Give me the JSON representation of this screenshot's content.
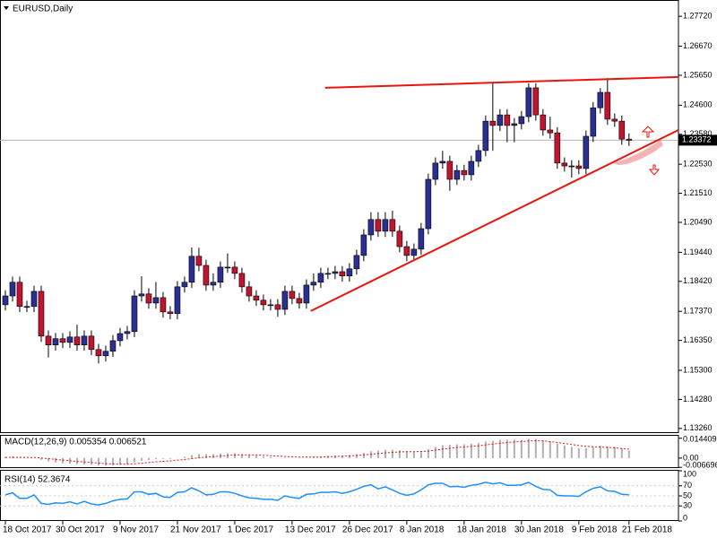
{
  "chart_data": [
    {
      "type": "candlestick",
      "title": "EURUSD,Daily",
      "categories": [
        "18 Oct 2017",
        null,
        null,
        null,
        null,
        null,
        null,
        null,
        "30 Oct 2017",
        null,
        null,
        null,
        null,
        null,
        null,
        null,
        "9 Nov 2017",
        null,
        null,
        null,
        null,
        null,
        null,
        null,
        "21 Nov 2017",
        null,
        null,
        null,
        null,
        null,
        null,
        null,
        "1 Dec 2017",
        null,
        null,
        null,
        null,
        null,
        null,
        null,
        "13 Dec 2017",
        null,
        null,
        null,
        null,
        null,
        null,
        null,
        "26 Dec 2017",
        null,
        null,
        null,
        null,
        null,
        null,
        null,
        "8 Jan 2018",
        null,
        null,
        null,
        null,
        null,
        null,
        null,
        "18 Jan 2018",
        null,
        null,
        null,
        null,
        null,
        null,
        null,
        "30 Jan 2018",
        null,
        null,
        null,
        null,
        null,
        null,
        null,
        "9 Feb 2018",
        null,
        null,
        null,
        null,
        null,
        null,
        "21 Feb 2018"
      ],
      "open": [
        1.176,
        1.1791,
        1.1839,
        1.1754,
        1.1754,
        1.1807,
        1.165,
        1.1619,
        1.1641,
        1.1628,
        1.1647,
        1.1619,
        1.165,
        1.1603,
        1.1581,
        1.1597,
        1.1634,
        1.1659,
        1.1666,
        1.1791,
        1.1798,
        1.1766,
        1.1785,
        1.1735,
        1.1729,
        1.1823,
        1.1839,
        1.193,
        1.1898,
        1.1829,
        1.1839,
        1.1892,
        1.1892,
        1.187,
        1.1823,
        1.1791,
        1.1776,
        1.176,
        1.176,
        1.1744,
        1.1807,
        1.1782,
        1.1766,
        1.1829,
        1.1839,
        1.187,
        1.187,
        1.1876,
        1.1861,
        1.1886,
        1.1933,
        1.2005,
        1.2059,
        1.2018,
        1.2059,
        1.2018,
        1.1964,
        1.1933,
        1.1955,
        1.2027,
        1.22,
        1.2257,
        1.2263,
        1.22,
        1.2231,
        1.2216,
        1.2263,
        1.2301,
        1.2404,
        1.2389,
        1.2426,
        1.2389,
        1.2395,
        1.242,
        1.2521,
        1.2426,
        1.2373,
        1.2363,
        1.2257,
        1.2247,
        1.2247,
        1.2238,
        1.2351,
        1.2451,
        1.2505,
        1.2411,
        1.2404,
        1.2341
      ],
      "high": [
        1.1811,
        1.1859,
        1.1859,
        1.1774,
        1.1827,
        1.1827,
        1.167,
        1.1661,
        1.1661,
        1.1667,
        1.169,
        1.167,
        1.167,
        1.1623,
        1.1617,
        1.1654,
        1.1679,
        1.1686,
        1.1811,
        1.186,
        1.1818,
        1.184,
        1.1805,
        1.1755,
        1.1843,
        1.1859,
        1.1961,
        1.196,
        1.1918,
        1.187,
        1.1912,
        1.194,
        1.1912,
        1.189,
        1.1843,
        1.1811,
        1.1796,
        1.178,
        1.178,
        1.1827,
        1.1827,
        1.1802,
        1.1849,
        1.187,
        1.189,
        1.189,
        1.1896,
        1.1896,
        1.1906,
        1.1953,
        1.2025,
        1.2085,
        1.2085,
        1.2085,
        1.209,
        1.2038,
        1.1984,
        1.1975,
        1.2047,
        1.222,
        1.2277,
        1.23,
        1.2283,
        1.2251,
        1.2251,
        1.2283,
        1.2321,
        1.2424,
        1.2537,
        1.2446,
        1.2446,
        1.2415,
        1.244,
        1.2537,
        1.2537,
        1.2446,
        1.242,
        1.2383,
        1.2277,
        1.2267,
        1.2267,
        1.2371,
        1.2471,
        1.252,
        1.2555,
        1.2431,
        1.2424,
        1.2361
      ],
      "low": [
        1.174,
        1.1771,
        1.1734,
        1.1734,
        1.1734,
        1.163,
        1.1575,
        1.1599,
        1.1608,
        1.1608,
        1.1599,
        1.1599,
        1.1583,
        1.1554,
        1.1561,
        1.1577,
        1.1614,
        1.1639,
        1.1646,
        1.1771,
        1.1746,
        1.1746,
        1.1715,
        1.1709,
        1.1709,
        1.1803,
        1.1819,
        1.1878,
        1.1809,
        1.1809,
        1.1819,
        1.1872,
        1.185,
        1.1803,
        1.1771,
        1.1756,
        1.174,
        1.174,
        1.1718,
        1.1724,
        1.1762,
        1.1746,
        1.1746,
        1.1809,
        1.1819,
        1.185,
        1.185,
        1.1841,
        1.1841,
        1.1866,
        1.1913,
        1.1985,
        1.1998,
        1.1998,
        1.1998,
        1.1944,
        1.1913,
        1.1913,
        1.1935,
        1.2007,
        1.218,
        1.2237,
        1.216,
        1.218,
        1.2196,
        1.2196,
        1.2243,
        1.2281,
        1.23,
        1.2369,
        1.233,
        1.233,
        1.2375,
        1.24,
        1.2406,
        1.2353,
        1.2343,
        1.2237,
        1.2227,
        1.2206,
        1.2218,
        1.2218,
        1.2331,
        1.2431,
        1.2391,
        1.2384,
        1.2321,
        1.2317
      ],
      "close": [
        1.1791,
        1.1839,
        1.1754,
        1.1754,
        1.1807,
        1.165,
        1.1619,
        1.1641,
        1.1628,
        1.1647,
        1.1619,
        1.165,
        1.1603,
        1.1581,
        1.1597,
        1.1634,
        1.1659,
        1.1666,
        1.1791,
        1.1798,
        1.1766,
        1.1785,
        1.1735,
        1.1729,
        1.1823,
        1.1839,
        1.193,
        1.1898,
        1.1829,
        1.1839,
        1.1892,
        1.1892,
        1.187,
        1.1823,
        1.1791,
        1.1776,
        1.176,
        1.176,
        1.1744,
        1.1807,
        1.1782,
        1.1766,
        1.1829,
        1.1839,
        1.187,
        1.187,
        1.1876,
        1.1861,
        1.1886,
        1.1933,
        1.2005,
        1.2059,
        1.2018,
        1.2059,
        1.2018,
        1.1964,
        1.1933,
        1.1955,
        1.2027,
        1.22,
        1.2257,
        1.2263,
        1.22,
        1.2231,
        1.2216,
        1.2263,
        1.2301,
        1.2404,
        1.2389,
        1.2426,
        1.2389,
        1.2395,
        1.242,
        1.2521,
        1.2426,
        1.2373,
        1.2363,
        1.2257,
        1.2247,
        1.2247,
        1.2238,
        1.2351,
        1.2451,
        1.2505,
        1.2411,
        1.2404,
        1.2341,
        1.2337
      ],
      "up_color": "#2b2f8f",
      "down_color": "#c0142f",
      "xlim": [
        -0.75,
        93.9
      ],
      "ylim": [
        1.1313,
        1.2829
      ],
      "yticks": [
        {
          "value": 1.2772,
          "label": "1.27720"
        },
        {
          "value": 1.2667,
          "label": "1.26670"
        },
        {
          "value": 1.2565,
          "label": "1.25650"
        },
        {
          "value": 1.246,
          "label": "1.24600"
        },
        {
          "value": 1.2358,
          "label": "1.23580"
        },
        {
          "value": 1.2253,
          "label": "1.22530"
        },
        {
          "value": 1.2151,
          "label": "1.21510"
        },
        {
          "value": 1.2049,
          "label": "1.20490"
        },
        {
          "value": 1.1944,
          "label": "1.19440"
        },
        {
          "value": 1.1842,
          "label": "1.18420"
        },
        {
          "value": 1.1737,
          "label": "1.17370"
        },
        {
          "value": 1.1635,
          "label": "1.16350"
        },
        {
          "value": 1.153,
          "label": "1.15300"
        },
        {
          "value": 1.1428,
          "label": "1.14280"
        },
        {
          "value": 1.1326,
          "label": "1.13260"
        }
      ],
      "last_price": {
        "value": 1.23372,
        "label": "1.23372"
      },
      "trendlines": [
        {
          "color": "#e8150f",
          "x": [
            44.6,
            93.9
          ],
          "y": [
            1.2521,
            1.2559
          ]
        },
        {
          "color": "#e8150f",
          "x": [
            42.6,
            93.9
          ],
          "y": [
            1.1738,
            1.2373
          ]
        }
      ]
    },
    {
      "type": "macd",
      "label": "MACD(12,26,9) 0.005354 0.006521",
      "histogram": [
        0.001,
        0.0012,
        0.0005,
        0.0,
        0.0,
        -0.0012,
        -0.0024,
        -0.0031,
        -0.0037,
        -0.004,
        -0.0044,
        -0.0045,
        -0.0049,
        -0.0053,
        -0.0054,
        -0.0052,
        -0.0048,
        -0.0044,
        -0.003,
        -0.0019,
        -0.0013,
        -0.0007,
        -0.0006,
        -0.0006,
        0.0002,
        0.0009,
        0.0022,
        0.0029,
        0.0028,
        0.0029,
        0.0033,
        0.0035,
        0.0035,
        0.003,
        0.0024,
        0.0018,
        0.0011,
        0.0006,
        0.0001,
        0.0002,
        0.0001,
        -0.0001,
        0.0003,
        0.0007,
        0.0012,
        0.0016,
        0.0019,
        0.002,
        0.0023,
        0.0029,
        0.0039,
        0.005,
        0.0055,
        0.0061,
        0.0061,
        0.0057,
        0.0051,
        0.0048,
        0.005,
        0.0066,
        0.0082,
        0.0094,
        0.0097,
        0.01,
        0.01,
        0.0104,
        0.0109,
        0.012,
        0.0126,
        0.0132,
        0.0133,
        0.0133,
        0.0133,
        0.014,
        0.0138,
        0.013,
        0.0122,
        0.0106,
        0.0093,
        0.0082,
        0.0072,
        0.0073,
        0.0081,
        0.009,
        0.0087,
        0.0082,
        0.0071,
        0.0054
      ],
      "signal": [
        0.0005,
        0.0006,
        0.0006,
        0.0005,
        0.0004,
        0.0001,
        -0.0004,
        -0.0009,
        -0.0014,
        -0.0019,
        -0.0024,
        -0.0028,
        -0.0032,
        -0.0036,
        -0.004,
        -0.0042,
        -0.0043,
        -0.0044,
        -0.0041,
        -0.0037,
        -0.0032,
        -0.0027,
        -0.0023,
        -0.002,
        -0.0015,
        -0.001,
        -0.0004,
        0.0002,
        0.0007,
        0.0011,
        0.0015,
        0.0019,
        0.0022,
        0.0024,
        0.0024,
        0.0023,
        0.0021,
        0.0018,
        0.0015,
        0.0012,
        0.001,
        0.0008,
        0.0007,
        0.0007,
        0.0008,
        0.001,
        0.0012,
        0.0014,
        0.0016,
        0.0019,
        0.0023,
        0.0028,
        0.0033,
        0.0038,
        0.0042,
        0.0045,
        0.0046,
        0.0047,
        0.0048,
        0.0051,
        0.0058,
        0.0065,
        0.0071,
        0.0077,
        0.0081,
        0.0086,
        0.009,
        0.0096,
        0.0102,
        0.0108,
        0.0113,
        0.0117,
        0.012,
        0.0124,
        0.0127,
        0.0125,
        0.012,
        0.0113,
        0.0106,
        0.0099,
        0.0091,
        0.0085,
        0.0082,
        0.008,
        0.0078,
        0.0075,
        0.007,
        0.0065
      ],
      "histogram_color": "#b0b0b0",
      "signal_color": "#e8150f",
      "ylim": [
        -0.0072,
        0.0162
      ],
      "yticks": [
        0.014409,
        {
          "value": 0,
          "label": "0.00"
        },
        -0.006696
      ]
    },
    {
      "type": "rsi",
      "label": "RSI(14) 52.3674",
      "values": [
        52,
        56,
        45,
        45,
        52,
        35,
        33,
        36,
        35,
        38,
        34,
        39,
        34,
        32,
        35,
        40,
        43,
        44,
        58,
        58,
        53,
        55,
        48,
        47,
        57,
        58,
        66,
        60,
        52,
        53,
        58,
        58,
        55,
        50,
        46,
        45,
        43,
        43,
        41,
        50,
        47,
        45,
        53,
        54,
        57,
        57,
        58,
        55,
        58,
        63,
        69,
        72,
        64,
        68,
        62,
        55,
        51,
        54,
        62,
        72,
        75,
        75,
        68,
        69,
        67,
        71,
        73,
        77,
        74,
        76,
        71,
        71,
        72,
        77,
        69,
        63,
        62,
        51,
        50,
        50,
        49,
        58,
        65,
        68,
        60,
        59,
        53,
        52.3674
      ],
      "color": "#1e90ff",
      "ylim": [
        0,
        100
      ],
      "yticks": [
        100,
        70,
        50,
        30,
        0
      ]
    }
  ]
}
